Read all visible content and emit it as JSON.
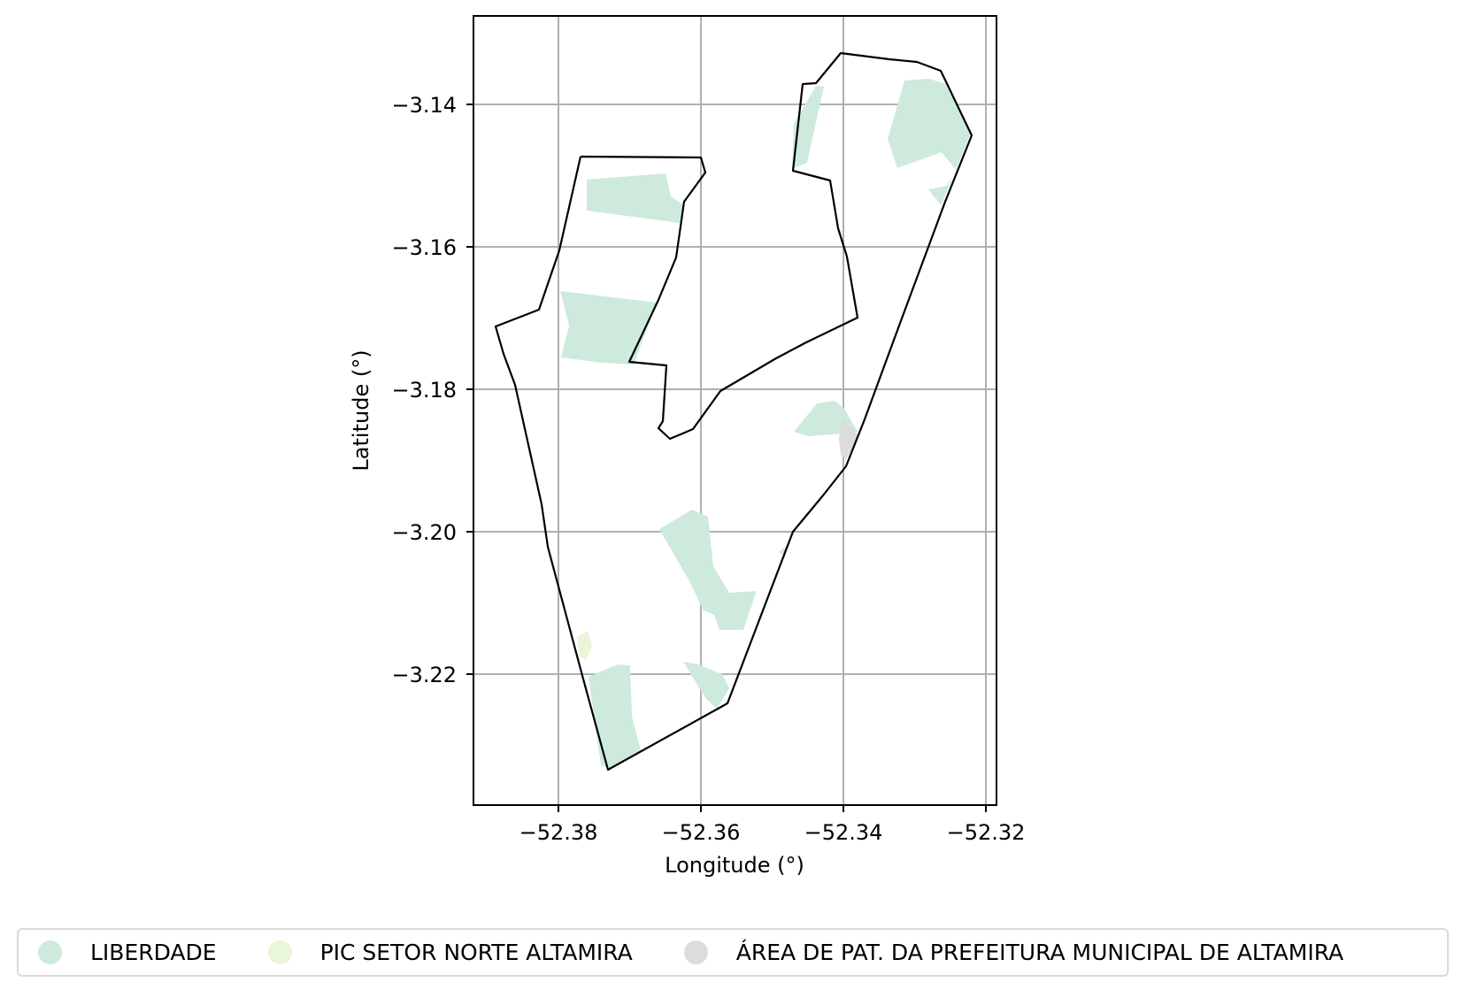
{
  "map": {
    "xlabel": "Longitude (°)",
    "ylabel": "Latitude (°)",
    "x_ticks": [
      "−52.38",
      "−52.36",
      "−52.34",
      "−52.32"
    ],
    "y_ticks": [
      "−3.14",
      "−3.16",
      "−3.18",
      "−3.20",
      "−3.22"
    ],
    "x_range": [
      -52.392,
      -52.3185
    ],
    "y_range": [
      -3.2375,
      -3.1275
    ],
    "grid": true,
    "boundary_color": "#000000",
    "grid_color": "#b0b0b0"
  },
  "legend": {
    "placement": "bottom",
    "items": [
      {
        "label": "LIBERDADE",
        "color": "#cdeadd"
      },
      {
        "label": "PIC SETOR NORTE ALTAMIRA",
        "color": "#e9f6d8"
      },
      {
        "label": "ÁREA DE PAT. DA PREFEITURA MUNICIPAL DE ALTAMIRA",
        "color": "#dcdcdc"
      }
    ]
  }
}
